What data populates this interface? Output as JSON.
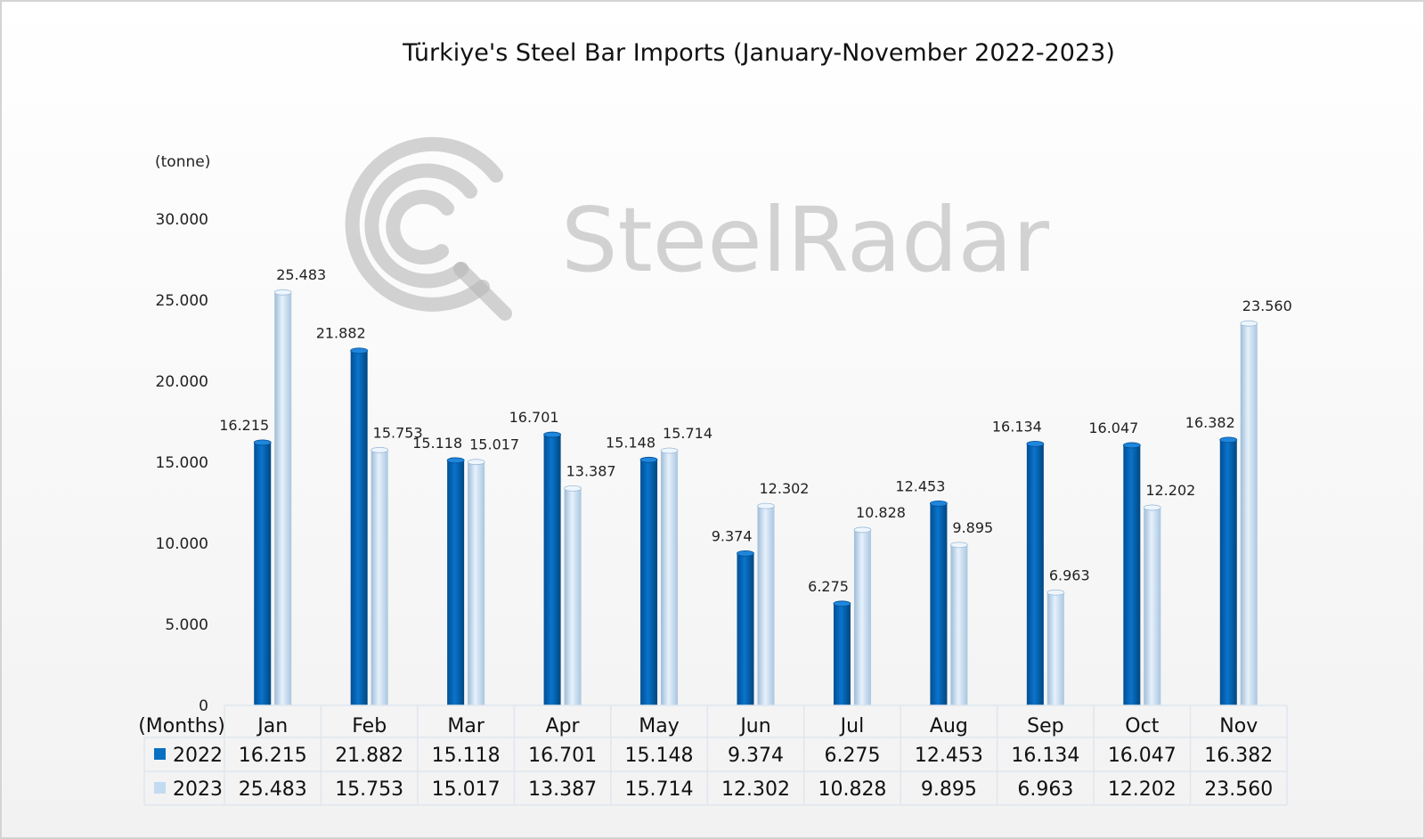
{
  "chart_data": {
    "type": "bar",
    "title": "Türkiye's Steel Bar Imports (January-November 2022-2023)",
    "ylabel": "(tonne)",
    "xlabel": "(Months)",
    "ylim": [
      0,
      30000
    ],
    "yticks": [
      "0",
      "5.000",
      "10.000",
      "15.000",
      "20.000",
      "25.000",
      "30.000"
    ],
    "ytick_values": [
      0,
      5000,
      10000,
      15000,
      20000,
      25000,
      30000
    ],
    "grid": false,
    "legend": "in-table-left",
    "categories": [
      "Jan",
      "Feb",
      "Mar",
      "Apr",
      "May",
      "Jun",
      "Jul",
      "Aug",
      "Sep",
      "Oct",
      "Nov"
    ],
    "series": [
      {
        "name": "2022",
        "color": "#0a6fc2",
        "values": [
          16215,
          21882,
          15118,
          16701,
          15148,
          9374,
          6275,
          12453,
          16134,
          16047,
          16382
        ],
        "labels": [
          "16.215",
          "21.882",
          "15.118",
          "16.701",
          "15.148",
          "9.374",
          "6.275",
          "12.453",
          "16.134",
          "16.047",
          "16.382"
        ]
      },
      {
        "name": "2023",
        "color": "#c3dbf2",
        "values": [
          25483,
          15753,
          15017,
          13387,
          15714,
          12302,
          10828,
          9895,
          6963,
          12202,
          23560
        ],
        "labels": [
          "25.483",
          "15.753",
          "15.017",
          "13.387",
          "15.714",
          "12.302",
          "10.828",
          "9.895",
          "6.963",
          "12.202",
          "23.560"
        ]
      }
    ]
  },
  "watermark": {
    "text": "SteelRadar",
    "icon": "radar-logo-icon"
  }
}
